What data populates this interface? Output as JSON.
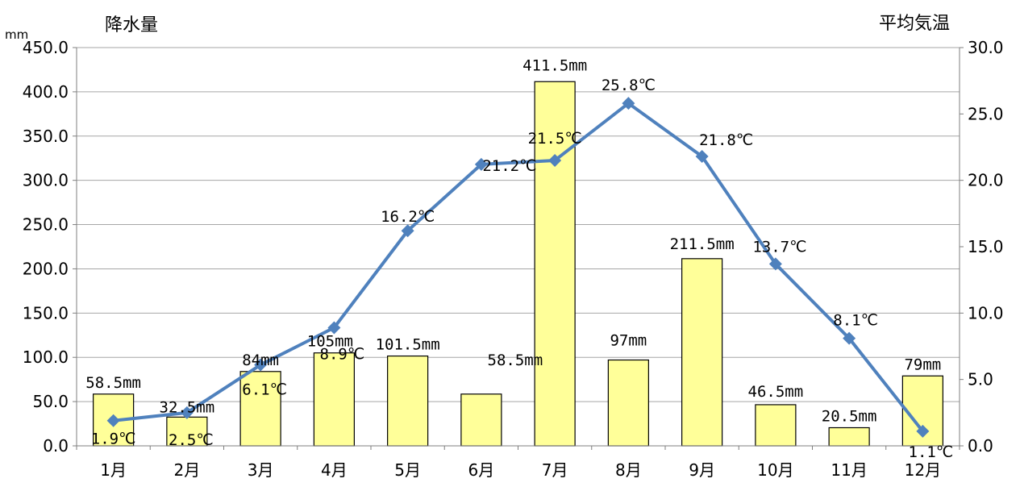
{
  "chart_data": {
    "type": "bar+line",
    "categories": [
      "1月",
      "2月",
      "3月",
      "4月",
      "5月",
      "6月",
      "7月",
      "8月",
      "9月",
      "10月",
      "11月",
      "12月"
    ],
    "series": [
      {
        "type": "bar",
        "axis": "left",
        "values": [
          58.5,
          32.5,
          84,
          105,
          101.5,
          58.5,
          411.5,
          97,
          211.5,
          46.5,
          20.5,
          79
        ],
        "labels": [
          "58.5mm",
          "32.5mm",
          "84mm",
          "105mm",
          "101.5mm",
          "58.5mm",
          "411.5mm",
          "97mm",
          "211.5mm",
          "46.5mm",
          "20.5mm",
          "79mm"
        ],
        "color": "#ffff99",
        "border": "#000000"
      },
      {
        "type": "line",
        "axis": "right",
        "values": [
          1.9,
          2.5,
          6.1,
          8.9,
          16.2,
          21.2,
          21.5,
          25.8,
          21.8,
          13.7,
          8.1,
          1.1
        ],
        "labels": [
          "1.9℃",
          "2.5℃",
          "6.1℃",
          "8.9℃",
          "16.2℃",
          "21.2℃",
          "21.5℃",
          "25.8℃",
          "21.8℃",
          "13.7℃",
          "8.1℃",
          "1.1℃"
        ],
        "color": "#4f81bd",
        "marker": "diamond"
      }
    ],
    "y_left": {
      "title": "降水量",
      "unit": "mm",
      "min": 0,
      "max": 450,
      "step": 50,
      "ticks": [
        "0.0",
        "50.0",
        "100.0",
        "150.0",
        "200.0",
        "250.0",
        "300.0",
        "350.0",
        "400.0",
        "450.0"
      ]
    },
    "y_right": {
      "title": "平均気温",
      "min": 0,
      "max": 30,
      "step": 5,
      "ticks": [
        "0.0",
        "5.0",
        "10.0",
        "15.0",
        "20.0",
        "25.0",
        "30.0"
      ]
    },
    "grid": true,
    "legend": "none"
  }
}
